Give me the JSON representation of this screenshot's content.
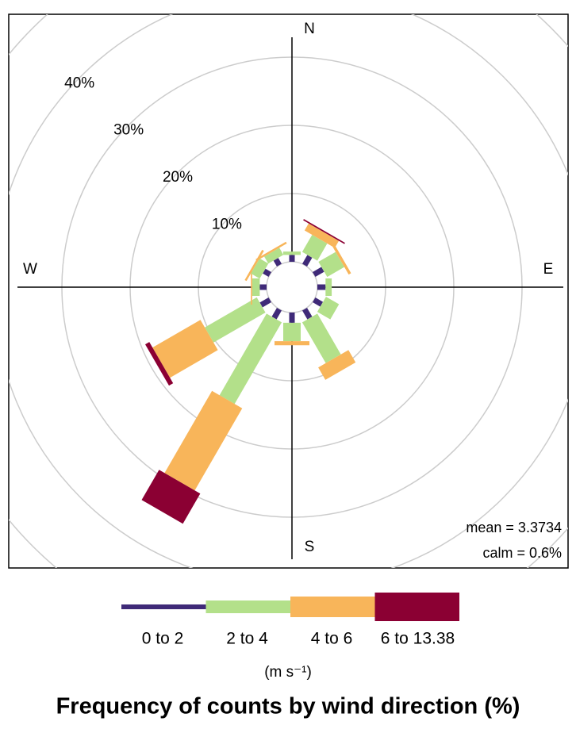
{
  "chart_data": {
    "type": "wind_rose",
    "title": "Frequency of counts by wind direction (%)",
    "directions": [
      0,
      30,
      60,
      90,
      120,
      150,
      180,
      210,
      240,
      270,
      300,
      330
    ],
    "compass": [
      "N",
      "E",
      "S",
      "W"
    ],
    "series": [
      {
        "name": "0 to 2",
        "color": "#3f2a78",
        "values": [
          1.0,
          1.5,
          1.5,
          1.2,
          1.3,
          1.5,
          1.5,
          1.5,
          1.5,
          1.0,
          1.0,
          1.0
        ]
      },
      {
        "name": "2 to 4",
        "color": "#b3e08a",
        "values": [
          0.5,
          2.9,
          2.9,
          0.9,
          2.2,
          6.9,
          2.7,
          13.8,
          8.8,
          1.1,
          1.5,
          1.2
        ]
      },
      {
        "name": "4 to 6",
        "color": "#f8b55a",
        "values": [
          0,
          1.2,
          0.4,
          0,
          0,
          2.1,
          0.6,
          13.9,
          8.1,
          0.2,
          0.3,
          0.3
        ]
      },
      {
        "name": "6 to 13.38",
        "color": "#8b0033",
        "values": [
          0,
          0.2,
          0,
          0,
          0,
          0,
          0,
          5.1,
          0.7,
          0,
          0,
          0
        ]
      }
    ],
    "rlim": [
      0,
      50
    ],
    "rticks": [
      {
        "value": 10,
        "label": "10%"
      },
      {
        "value": 20,
        "label": "20%"
      },
      {
        "value": 30,
        "label": "30%"
      },
      {
        "value": 40,
        "label": "40%"
      }
    ],
    "unit_label": "(m s⁻¹)",
    "mean_label": "mean = 3.3734",
    "calm_label": "calm = 0.6%",
    "annotation_color": "#228b22",
    "grid": true
  }
}
